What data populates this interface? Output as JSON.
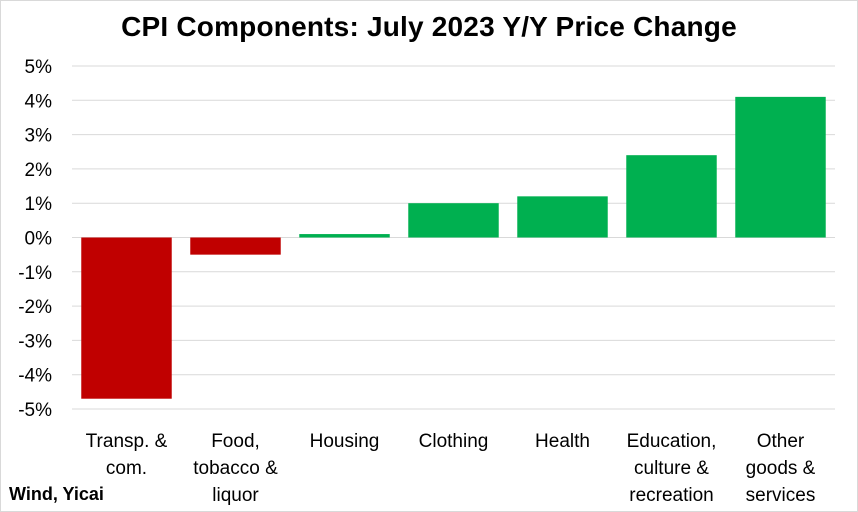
{
  "chart_data": {
    "type": "bar",
    "title": "CPI Components: July 2023 Y/Y Price Change",
    "source": "Wind, Yicai",
    "xlabel": "",
    "ylabel": "",
    "categories": [
      [
        "Transp. &",
        "com."
      ],
      [
        "Food,",
        "tobacco &",
        "liquor"
      ],
      [
        "Housing"
      ],
      [
        "Clothing"
      ],
      [
        "Health"
      ],
      [
        "Education,",
        "culture &",
        "recreation"
      ],
      [
        "Other",
        "goods &",
        "services"
      ]
    ],
    "values": [
      -4.7,
      -0.5,
      0.1,
      1.0,
      1.2,
      2.4,
      4.1
    ],
    "ylim": [
      -5,
      5
    ],
    "yticks": [
      5,
      4,
      3,
      2,
      1,
      0,
      -1,
      -2,
      -3,
      -4,
      -5
    ],
    "ytick_labels": [
      "5%",
      "4%",
      "3%",
      "2%",
      "1%",
      "0%",
      "-1%",
      "-2%",
      "-3%",
      "-4%",
      "-5%"
    ],
    "grid": true,
    "legend": "none",
    "colors": {
      "positive": "#00b050",
      "negative": "#c00000",
      "grid": "#d9d9d9"
    }
  }
}
